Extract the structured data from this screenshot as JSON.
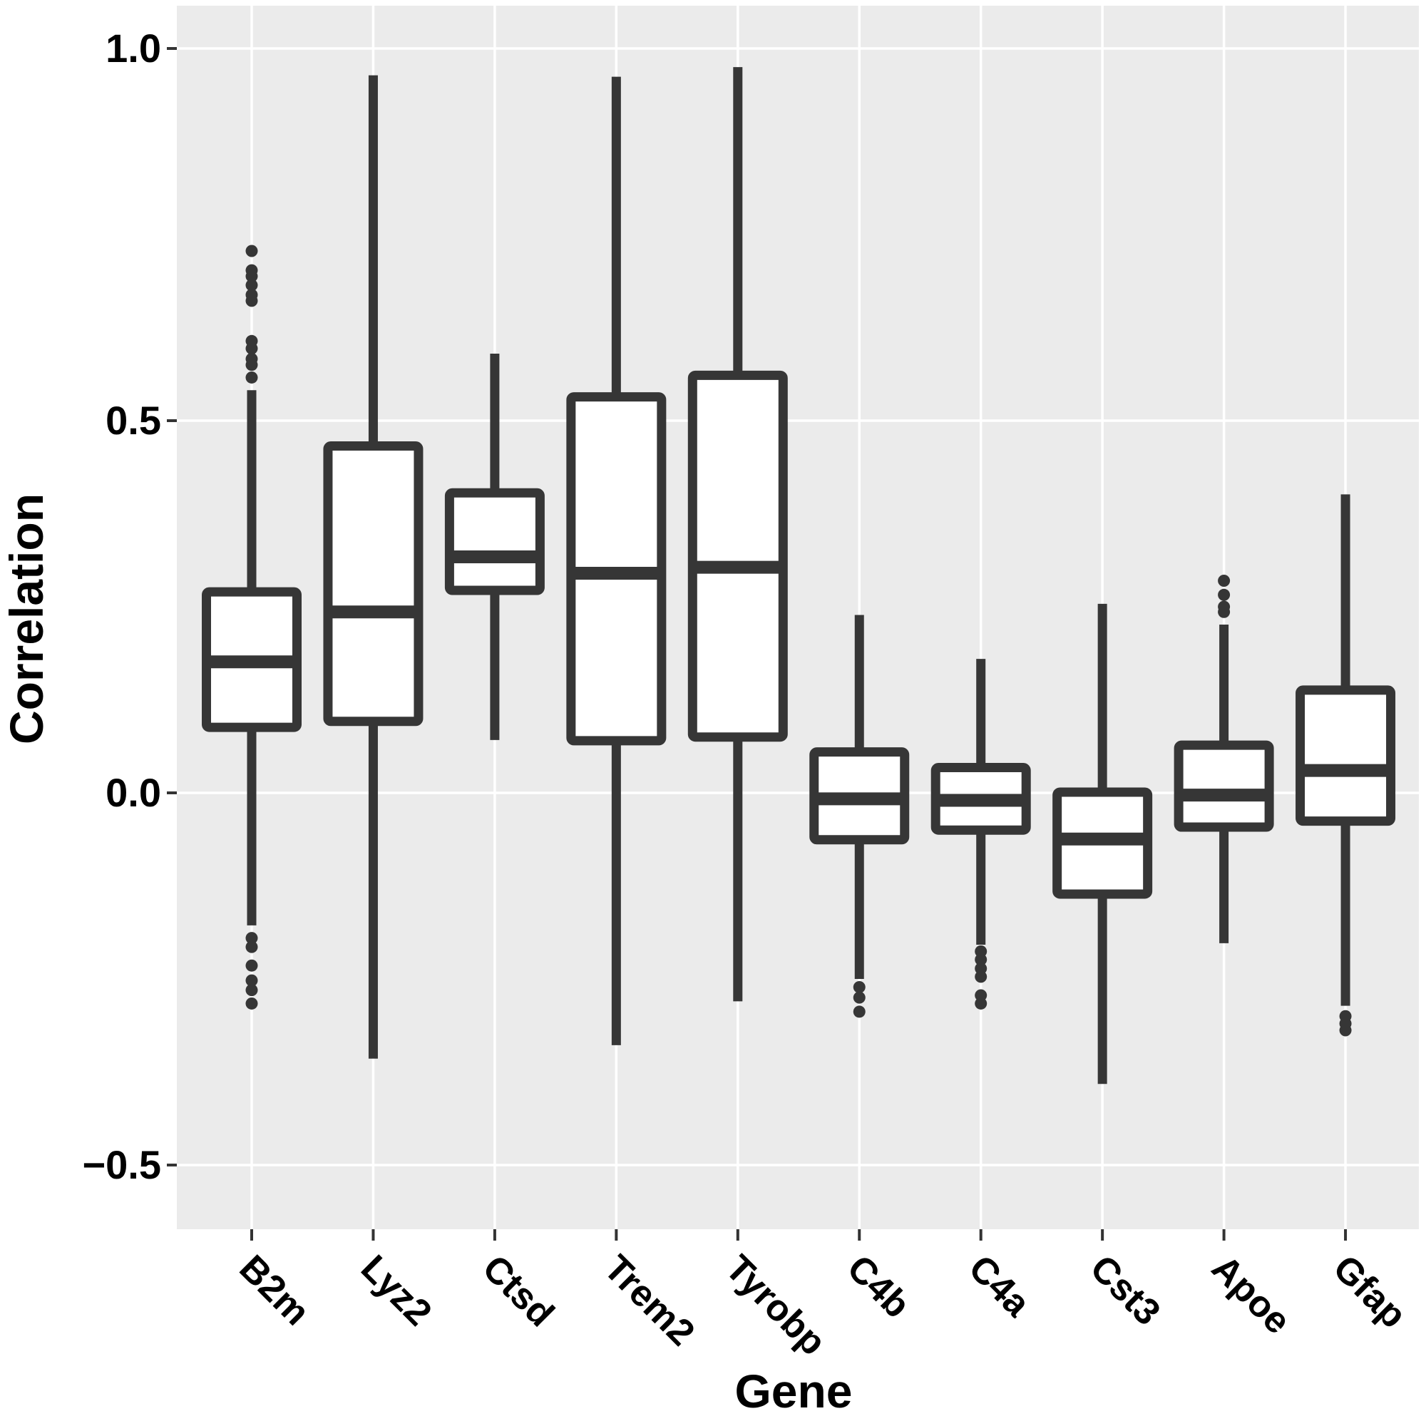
{
  "chart_data": {
    "type": "box",
    "title": "",
    "xlabel": "Gene",
    "ylabel": "Correlation",
    "legend": "none",
    "grid": "white major gridlines on grey panel; horizontal at 0.5 steps, vertical at category centers",
    "ylim": [
      -0.59,
      1.05
    ],
    "y_ticks": [
      1.0,
      0.5,
      0.0,
      -0.5
    ],
    "y_tick_labels": [
      "1.0",
      "0.5",
      "0.0",
      "−0.5"
    ],
    "categories": [
      "B2m",
      "Lyz2",
      "Ctsd",
      "Trem2",
      "Tyrobp",
      "C4b",
      "C4a",
      "Cst3",
      "Apoe",
      "Gfap"
    ],
    "category_label_colors": [
      "red",
      "red",
      "red",
      "red",
      "red",
      "black",
      "black",
      "black",
      "black",
      "black"
    ],
    "boxes": [
      {
        "gene": "B2m",
        "whisker_low": -0.178,
        "q1": 0.088,
        "median": 0.176,
        "q3": 0.27,
        "whisker_high": 0.541,
        "outliers_high": [
          0.728,
          0.702,
          0.694,
          0.682,
          0.669,
          0.661,
          0.607,
          0.597,
          0.583,
          0.575,
          0.558
        ],
        "outliers_low": [
          -0.195,
          -0.207,
          -0.232,
          -0.252,
          -0.265,
          -0.283
        ]
      },
      {
        "gene": "Lyz2",
        "whisker_low": -0.357,
        "q1": 0.096,
        "median": 0.243,
        "q3": 0.466,
        "whisker_high": 0.964,
        "outliers_high": [],
        "outliers_low": []
      },
      {
        "gene": "Ctsd",
        "whisker_low": 0.071,
        "q1": 0.272,
        "median": 0.317,
        "q3": 0.403,
        "whisker_high": 0.59,
        "outliers_high": [],
        "outliers_low": []
      },
      {
        "gene": "Trem2",
        "whisker_low": -0.339,
        "q1": 0.07,
        "median": 0.295,
        "q3": 0.532,
        "whisker_high": 0.962,
        "outliers_high": [],
        "outliers_low": []
      },
      {
        "gene": "Tyrobp",
        "whisker_low": -0.28,
        "q1": 0.075,
        "median": 0.303,
        "q3": 0.561,
        "whisker_high": 0.975,
        "outliers_high": [],
        "outliers_low": []
      },
      {
        "gene": "C4b",
        "whisker_low": -0.25,
        "q1": -0.063,
        "median": -0.008,
        "q3": 0.055,
        "whisker_high": 0.239,
        "outliers_high": [],
        "outliers_low": [
          -0.261,
          -0.275,
          -0.294
        ]
      },
      {
        "gene": "C4a",
        "whisker_low": -0.204,
        "q1": -0.05,
        "median": -0.01,
        "q3": 0.034,
        "whisker_high": 0.18,
        "outliers_high": [],
        "outliers_low": [
          -0.213,
          -0.224,
          -0.236,
          -0.247,
          -0.272,
          -0.283
        ]
      },
      {
        "gene": "Cst3",
        "whisker_low": -0.391,
        "q1": -0.136,
        "median": -0.062,
        "q3": 0.001,
        "whisker_high": 0.254,
        "outliers_high": [],
        "outliers_low": []
      },
      {
        "gene": "Apoe",
        "whisker_low": -0.202,
        "q1": -0.046,
        "median": -0.003,
        "q3": 0.064,
        "whisker_high": 0.226,
        "outliers_high": [
          0.285,
          0.266,
          0.25,
          0.243
        ],
        "outliers_low": []
      },
      {
        "gene": "Gfap",
        "whisker_low": -0.286,
        "q1": -0.038,
        "median": 0.03,
        "q3": 0.138,
        "whisker_high": 0.401,
        "outliers_high": [],
        "outliers_low": [
          -0.3,
          -0.31,
          -0.319
        ]
      }
    ]
  },
  "style": {
    "panel_bg": "#EBEBEB",
    "grid_color": "#FFFFFF",
    "box_stroke": "#363636",
    "box_fill": "#FFFFFF",
    "outlier_color": "#363636",
    "tick_color": "#333333",
    "red_label_color": "#DE1C1A",
    "black_label_color": "#000000"
  }
}
